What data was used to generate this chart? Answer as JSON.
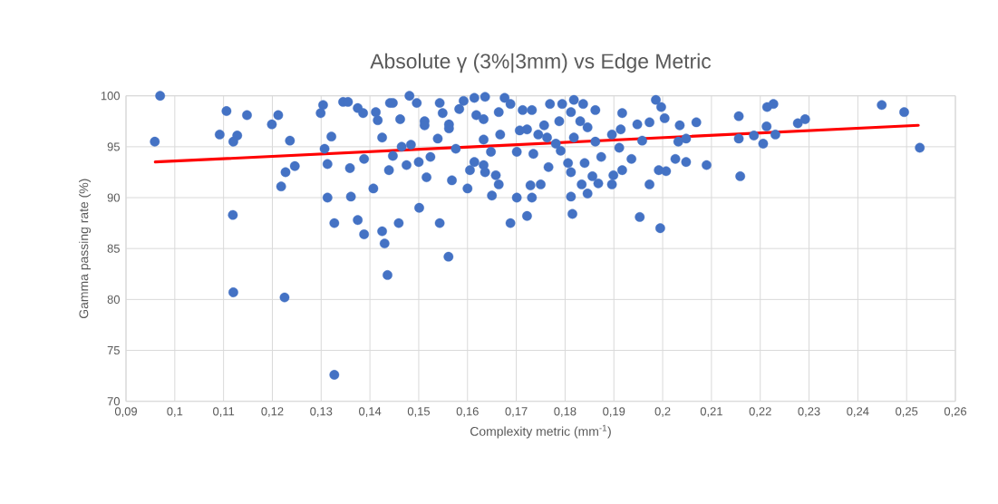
{
  "chart_data": {
    "type": "scatter",
    "title": "Absolute γ (3%|3mm) vs Edge Metric",
    "xlabel": "Complexity metric (mm$^{-1}$)",
    "ylabel": "Gamma passing rate (%)",
    "xlim": [
      0.09,
      0.26
    ],
    "ylim": [
      70,
      100
    ],
    "xticks": [
      {
        "value": 0.09,
        "label": "0,09"
      },
      {
        "value": 0.1,
        "label": "0,1"
      },
      {
        "value": 0.11,
        "label": "0,11"
      },
      {
        "value": 0.12,
        "label": "0,12"
      },
      {
        "value": 0.13,
        "label": "0,13"
      },
      {
        "value": 0.14,
        "label": "0,14"
      },
      {
        "value": 0.15,
        "label": "0,15"
      },
      {
        "value": 0.16,
        "label": "0,16"
      },
      {
        "value": 0.17,
        "label": "0,17"
      },
      {
        "value": 0.18,
        "label": "0,18"
      },
      {
        "value": 0.19,
        "label": "0,19"
      },
      {
        "value": 0.2,
        "label": "0,2"
      },
      {
        "value": 0.21,
        "label": "0,21"
      },
      {
        "value": 0.22,
        "label": "0,22"
      },
      {
        "value": 0.23,
        "label": "0,23"
      },
      {
        "value": 0.24,
        "label": "0,24"
      },
      {
        "value": 0.25,
        "label": "0,25"
      },
      {
        "value": 0.26,
        "label": "0,26"
      }
    ],
    "yticks": [
      70,
      75,
      80,
      85,
      90,
      95,
      100
    ],
    "grid": true,
    "series": [
      {
        "color": "#4472c4",
        "marker": "circle",
        "x": [
          0.097,
          0.0959,
          0.1106,
          0.1092,
          0.1128,
          0.112,
          0.1148,
          0.1119,
          0.1199,
          0.1212,
          0.1236,
          0.1246,
          0.1227,
          0.1218,
          0.1304,
          0.1299,
          0.1321,
          0.1307,
          0.1313,
          0.1313,
          0.1327,
          0.1345,
          0.1355,
          0.1375,
          0.1386,
          0.1359,
          0.1388,
          0.1361,
          0.1375,
          0.1388,
          0.1407,
          0.1412,
          0.1416,
          0.1425,
          0.1441,
          0.1439,
          0.1425,
          0.143,
          0.112,
          0.1225,
          0.1327,
          0.1436,
          0.1561,
          0.1447,
          0.1481,
          0.1496,
          0.1462,
          0.1512,
          0.1512,
          0.1465,
          0.1484,
          0.1447,
          0.1475,
          0.15,
          0.1524,
          0.1516,
          0.1501,
          0.1459,
          0.1543,
          0.1543,
          0.1549,
          0.1562,
          0.1562,
          0.1539,
          0.1576,
          0.1568,
          0.1583,
          0.1592,
          0.1614,
          0.1636,
          0.1618,
          0.1633,
          0.1633,
          0.1667,
          0.1676,
          0.1688,
          0.1664,
          0.1614,
          0.1605,
          0.1633,
          0.1636,
          0.1658,
          0.1664,
          0.16,
          0.165,
          0.1648,
          0.1701,
          0.1701,
          0.1688,
          0.1713,
          0.1732,
          0.1722,
          0.1707,
          0.1735,
          0.1729,
          0.175,
          0.1732,
          0.1722,
          0.1766,
          0.1769,
          0.1757,
          0.1745,
          0.1763,
          0.1781,
          0.1794,
          0.1788,
          0.1818,
          0.1812,
          0.1837,
          0.1831,
          0.1846,
          0.1862,
          0.1791,
          0.1806,
          0.1818,
          0.1812,
          0.184,
          0.1812,
          0.1815,
          0.1834,
          0.1846,
          0.1856,
          0.1868,
          0.1874,
          0.1862,
          0.1896,
          0.1899,
          0.1917,
          0.1936,
          0.1917,
          0.1914,
          0.1896,
          0.1911,
          0.1948,
          0.1973,
          0.1958,
          0.1986,
          0.1973,
          0.1953,
          0.1995,
          0.1992,
          0.1997,
          0.2004,
          0.2035,
          0.2069,
          0.2032,
          0.2048,
          0.2026,
          0.2048,
          0.209,
          0.2007,
          0.2156,
          0.2156,
          0.2159,
          0.2187,
          0.2206,
          0.2213,
          0.2214,
          0.2227,
          0.2231,
          0.2277,
          0.2292,
          0.2449,
          0.2495,
          0.2527
        ],
        "values": [
          100.0,
          95.5,
          98.5,
          96.2,
          96.1,
          95.5,
          98.1,
          88.3,
          97.2,
          98.1,
          95.6,
          93.1,
          92.5,
          91.1,
          99.1,
          98.3,
          96.0,
          94.8,
          93.3,
          90.0,
          87.5,
          99.4,
          99.4,
          98.8,
          98.3,
          92.9,
          93.8,
          90.1,
          87.8,
          86.4,
          90.9,
          98.4,
          97.6,
          95.9,
          99.3,
          92.7,
          86.7,
          85.5,
          80.7,
          80.2,
          72.6,
          82.4,
          84.2,
          99.3,
          100.0,
          99.3,
          97.7,
          97.5,
          97.1,
          95.0,
          95.2,
          94.1,
          93.2,
          93.5,
          94.0,
          92.0,
          89.0,
          87.5,
          87.5,
          99.3,
          98.3,
          97.2,
          96.8,
          95.8,
          94.8,
          91.7,
          98.7,
          99.5,
          99.8,
          99.9,
          98.1,
          97.7,
          95.7,
          96.2,
          99.8,
          99.2,
          98.4,
          93.5,
          92.7,
          93.2,
          92.5,
          92.2,
          91.3,
          90.9,
          90.2,
          94.5,
          94.5,
          90.0,
          87.5,
          98.6,
          98.6,
          96.7,
          96.6,
          94.3,
          91.2,
          91.3,
          90.0,
          88.2,
          93.0,
          99.2,
          97.1,
          96.2,
          95.9,
          95.3,
          99.2,
          97.5,
          99.6,
          98.4,
          99.2,
          97.5,
          96.9,
          98.6,
          94.6,
          93.4,
          95.9,
          92.5,
          93.4,
          90.1,
          88.4,
          91.3,
          90.4,
          92.1,
          91.4,
          94.0,
          95.5,
          91.3,
          92.2,
          92.7,
          93.8,
          98.3,
          96.7,
          96.2,
          94.9,
          97.2,
          97.4,
          95.6,
          99.6,
          91.3,
          88.1,
          87.0,
          92.7,
          98.9,
          97.8,
          97.1,
          97.4,
          95.5,
          95.8,
          93.8,
          93.5,
          93.2,
          92.6,
          98.0,
          95.8,
          92.1,
          96.1,
          95.3,
          97.0,
          98.9,
          99.2,
          96.2,
          97.3,
          97.7,
          99.1,
          98.4,
          94.9
        ]
      },
      {
        "type": "line",
        "color": "#ff0000",
        "marker": "none",
        "x": [
          0.096,
          0.2524
        ],
        "values": [
          93.5,
          97.1
        ]
      }
    ]
  }
}
